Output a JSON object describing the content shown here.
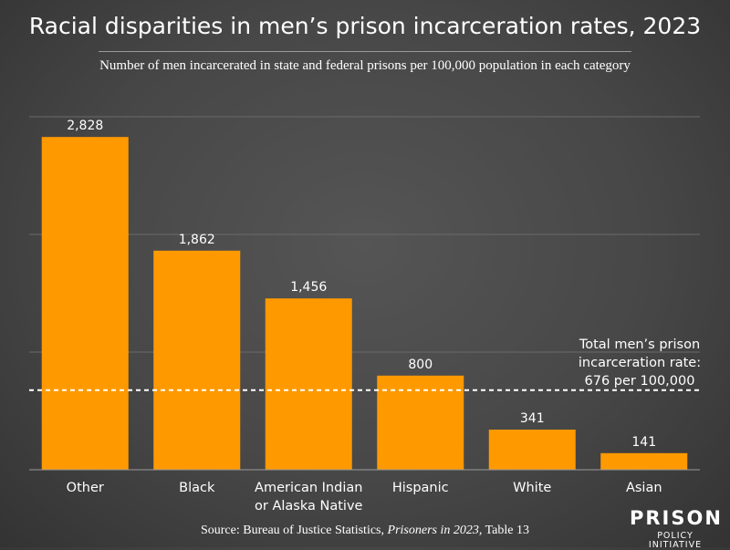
{
  "page": {
    "title": "Racial disparities in men’s prison incarceration rates, 2023",
    "subtitle": "Number of men incarcerated in state and federal prisons per 100,000 population in each category",
    "source_prefix": "Source: Bureau of Justice Statistics, ",
    "source_italic": "Prisoners in 2023,",
    "source_suffix": " Table 13",
    "logo_line1": "PRISON",
    "logo_line2": "POLICY INITIATIVE"
  },
  "chart_data": {
    "type": "bar",
    "title": "Racial disparities in men’s prison incarceration rates, 2023",
    "subtitle": "Number of men incarcerated in state and federal prisons per 100,000 population in each category",
    "xlabel": "",
    "ylabel": "",
    "ylim": [
      0,
      3000
    ],
    "gridlines": [
      1000,
      2000,
      3000
    ],
    "grid": true,
    "bar_color": "#ff9900",
    "categories": [
      "Other",
      "Black",
      "American Indian or Alaska Native",
      "Hispanic",
      "White",
      "Asian"
    ],
    "category_lines": [
      [
        "Other"
      ],
      [
        "Black"
      ],
      [
        "American Indian",
        "or Alaska Native"
      ],
      [
        "Hispanic"
      ],
      [
        "White"
      ],
      [
        "Asian"
      ]
    ],
    "values": [
      2828,
      1862,
      1456,
      800,
      341,
      141
    ],
    "value_labels": [
      "2,828",
      "1,862",
      "1,456",
      "800",
      "341",
      "141"
    ],
    "reference_line": {
      "value": 676,
      "style": "dashed",
      "label_lines": [
        "Total men’s prison",
        "incarceration rate:",
        "676 per 100,000"
      ]
    }
  }
}
